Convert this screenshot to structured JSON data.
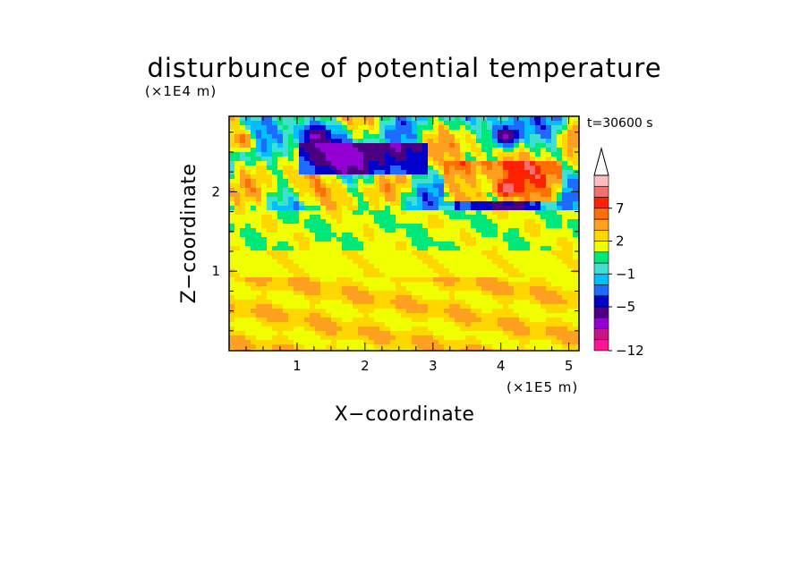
{
  "chart_data": {
    "type": "heatmap",
    "title": "disturbunce of potential temperature",
    "time_label": "t=30600 s",
    "xlabel": "X−coordinate",
    "ylabel": "Z−coordinate",
    "x_unit": "(×1E5 m)",
    "y_unit": "(×1E4 m)",
    "xlim": [
      0,
      5.15
    ],
    "ylim": [
      0,
      2.95
    ],
    "x_ticks": [
      "1",
      "2",
      "3",
      "4",
      "5"
    ],
    "y_ticks": [
      "1",
      "2"
    ],
    "x_tick_values": [
      1,
      2,
      3,
      4,
      5
    ],
    "y_tick_values": [
      1,
      2
    ],
    "grid": false,
    "colorbar": {
      "position": "right",
      "labels": [
        "7",
        "2",
        "−1",
        "−5",
        "−12"
      ],
      "label_values": [
        7,
        2,
        -1,
        -5,
        -12
      ],
      "colors": [
        "#ff1493",
        "#c71585",
        "#9400d3",
        "#4b0082",
        "#0000cd",
        "#1e6cff",
        "#00bfff",
        "#40e0d0",
        "#00e87a",
        "#f0ff00",
        "#ffd700",
        "#ffa020",
        "#ff7000",
        "#ff2200",
        "#f47070",
        "#ffbcbc"
      ]
    },
    "features": [
      {
        "x": 1.28,
        "z": 2.7,
        "v": -9
      },
      {
        "x": 1.55,
        "z": 2.5,
        "v": -9
      },
      {
        "x": 4.08,
        "z": 2.7,
        "v": -9
      },
      {
        "x": 4.1,
        "z": 2.05,
        "v": 8
      },
      {
        "x": 0.2,
        "z": 2.65,
        "v": 5
      },
      {
        "x": 5.1,
        "z": 2.7,
        "v": 4
      }
    ]
  }
}
